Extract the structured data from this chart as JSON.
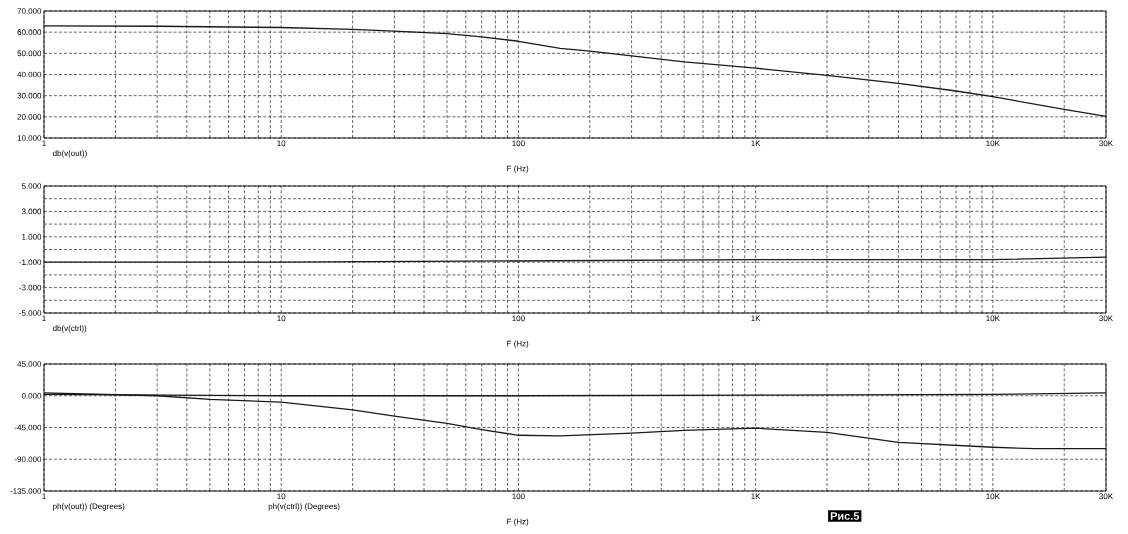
{
  "chart_data": [
    {
      "type": "line",
      "xlabel": "F (Hz)",
      "annotations": [
        "db(v(out))"
      ],
      "log": "x",
      "grid": true,
      "xlim": [
        1,
        30000
      ],
      "ylim": [
        10,
        70
      ],
      "xticks": [
        1,
        {
          "value": 2,
          "label": null
        },
        {
          "value": 3,
          "label": null
        },
        {
          "value": 4,
          "label": null
        },
        {
          "value": 5,
          "label": null
        },
        {
          "value": 6,
          "label": null
        },
        {
          "value": 7,
          "label": null
        },
        {
          "value": 8,
          "label": null
        },
        {
          "value": 9,
          "label": null
        },
        10,
        {
          "value": 20,
          "label": null
        },
        {
          "value": 30,
          "label": null
        },
        {
          "value": 40,
          "label": null
        },
        {
          "value": 50,
          "label": null
        },
        {
          "value": 60,
          "label": null
        },
        {
          "value": 70,
          "label": null
        },
        {
          "value": 80,
          "label": null
        },
        {
          "value": 90,
          "label": null
        },
        100,
        {
          "value": 200,
          "label": null
        },
        {
          "value": 300,
          "label": null
        },
        {
          "value": 400,
          "label": null
        },
        {
          "value": 500,
          "label": null
        },
        {
          "value": 600,
          "label": null
        },
        {
          "value": 700,
          "label": null
        },
        {
          "value": 800,
          "label": null
        },
        {
          "value": 900,
          "label": null
        },
        {
          "value": 1000,
          "label": "1K"
        },
        {
          "value": 2000,
          "label": null
        },
        {
          "value": 3000,
          "label": null
        },
        {
          "value": 4000,
          "label": null
        },
        {
          "value": 5000,
          "label": null
        },
        {
          "value": 6000,
          "label": null
        },
        {
          "value": 7000,
          "label": null
        },
        {
          "value": 8000,
          "label": null
        },
        {
          "value": 9000,
          "label": null
        },
        {
          "value": 10000,
          "label": "10K"
        },
        {
          "value": 20000,
          "label": null
        },
        {
          "value": 30000,
          "label": "30K"
        }
      ],
      "yticks": [
        {
          "value": 10,
          "label": "10.000"
        },
        {
          "value": 20,
          "label": "20.000"
        },
        {
          "value": 30,
          "label": "30.000"
        },
        {
          "value": 40,
          "label": "40.000"
        },
        {
          "value": 50,
          "label": "50.000"
        },
        {
          "value": 60,
          "label": "60.000"
        },
        {
          "value": 70,
          "label": "70.000"
        }
      ],
      "series": [
        {
          "color": "#1a1a1a",
          "x": [
            1,
            3,
            10,
            20,
            30,
            50,
            70,
            100,
            150,
            200,
            300,
            500,
            1000,
            2000,
            4000,
            7000,
            10000,
            20000,
            30000
          ],
          "values": [
            63,
            62.8,
            62.2,
            61.3,
            60.5,
            59.3,
            57.8,
            55.7,
            52.3,
            51,
            48.8,
            46,
            43,
            39.6,
            35.8,
            32.2,
            29.5,
            23.5,
            20.2
          ]
        }
      ]
    },
    {
      "type": "line",
      "xlabel": "F (Hz)",
      "annotations": [
        "db(v(ctrl))"
      ],
      "log": "x",
      "grid": true,
      "xlim": [
        1,
        30000
      ],
      "ylim": [
        -5,
        5
      ],
      "xticks": [
        1,
        {
          "value": 2,
          "label": null
        },
        {
          "value": 3,
          "label": null
        },
        {
          "value": 4,
          "label": null
        },
        {
          "value": 5,
          "label": null
        },
        {
          "value": 6,
          "label": null
        },
        {
          "value": 7,
          "label": null
        },
        {
          "value": 8,
          "label": null
        },
        {
          "value": 9,
          "label": null
        },
        10,
        {
          "value": 20,
          "label": null
        },
        {
          "value": 30,
          "label": null
        },
        {
          "value": 40,
          "label": null
        },
        {
          "value": 50,
          "label": null
        },
        {
          "value": 60,
          "label": null
        },
        {
          "value": 70,
          "label": null
        },
        {
          "value": 80,
          "label": null
        },
        {
          "value": 90,
          "label": null
        },
        100,
        {
          "value": 200,
          "label": null
        },
        {
          "value": 300,
          "label": null
        },
        {
          "value": 400,
          "label": null
        },
        {
          "value": 500,
          "label": null
        },
        {
          "value": 600,
          "label": null
        },
        {
          "value": 700,
          "label": null
        },
        {
          "value": 800,
          "label": null
        },
        {
          "value": 900,
          "label": null
        },
        {
          "value": 1000,
          "label": "1K"
        },
        {
          "value": 2000,
          "label": null
        },
        {
          "value": 3000,
          "label": null
        },
        {
          "value": 4000,
          "label": null
        },
        {
          "value": 5000,
          "label": null
        },
        {
          "value": 6000,
          "label": null
        },
        {
          "value": 7000,
          "label": null
        },
        {
          "value": 8000,
          "label": null
        },
        {
          "value": 9000,
          "label": null
        },
        {
          "value": 10000,
          "label": "10K"
        },
        {
          "value": 20000,
          "label": null
        },
        {
          "value": 30000,
          "label": "30K"
        }
      ],
      "yticks": [
        {
          "value": -5,
          "label": "-5.000"
        },
        {
          "value": -4,
          "label": null
        },
        {
          "value": -3,
          "label": "-3.000"
        },
        {
          "value": -2,
          "label": null
        },
        {
          "value": -1,
          "label": "-1.000"
        },
        {
          "value": 0,
          "label": null
        },
        {
          "value": 1,
          "label": "1.000"
        },
        {
          "value": 2,
          "label": null
        },
        {
          "value": 3,
          "label": "3.000"
        },
        {
          "value": 4,
          "label": null
        },
        {
          "value": 5,
          "label": "5.000"
        }
      ],
      "series": [
        {
          "color": "#1a1a1a",
          "x": [
            1,
            10,
            100,
            1000,
            10000,
            30000
          ],
          "values": [
            -1,
            -1,
            -0.9,
            -0.8,
            -0.8,
            -0.6
          ]
        }
      ]
    },
    {
      "type": "line",
      "xlabel": "F (Hz)",
      "log": "x",
      "grid": true,
      "annotations": [
        "ph(v(out)) (Degrees)",
        "ph(v(ctrl)) (Degrees)",
        "Рис.5"
      ],
      "xlim": [
        1,
        30000
      ],
      "ylim": [
        -135,
        45
      ],
      "xticks": [
        1,
        {
          "value": 2,
          "label": null
        },
        {
          "value": 3,
          "label": null
        },
        {
          "value": 4,
          "label": null
        },
        {
          "value": 5,
          "label": null
        },
        {
          "value": 6,
          "label": null
        },
        {
          "value": 7,
          "label": null
        },
        {
          "value": 8,
          "label": null
        },
        {
          "value": 9,
          "label": null
        },
        10,
        {
          "value": 20,
          "label": null
        },
        {
          "value": 30,
          "label": null
        },
        {
          "value": 40,
          "label": null
        },
        {
          "value": 50,
          "label": null
        },
        {
          "value": 60,
          "label": null
        },
        {
          "value": 70,
          "label": null
        },
        {
          "value": 80,
          "label": null
        },
        {
          "value": 90,
          "label": null
        },
        100,
        {
          "value": 200,
          "label": null
        },
        {
          "value": 300,
          "label": null
        },
        {
          "value": 400,
          "label": null
        },
        {
          "value": 500,
          "label": null
        },
        {
          "value": 600,
          "label": null
        },
        {
          "value": 700,
          "label": null
        },
        {
          "value": 800,
          "label": null
        },
        {
          "value": 900,
          "label": null
        },
        {
          "value": 1000,
          "label": "1K"
        },
        {
          "value": 2000,
          "label": null
        },
        {
          "value": 3000,
          "label": null
        },
        {
          "value": 4000,
          "label": null
        },
        {
          "value": 5000,
          "label": null
        },
        {
          "value": 6000,
          "label": null
        },
        {
          "value": 7000,
          "label": null
        },
        {
          "value": 8000,
          "label": null
        },
        {
          "value": 9000,
          "label": null
        },
        {
          "value": 10000,
          "label": "10K"
        },
        {
          "value": 20000,
          "label": null
        },
        {
          "value": 30000,
          "label": "30K"
        }
      ],
      "yticks": [
        {
          "value": -135,
          "label": "-135.000"
        },
        {
          "value": -90,
          "label": "-90.000"
        },
        {
          "value": -45,
          "label": "-45.000"
        },
        {
          "value": 0,
          "label": "0.000"
        },
        {
          "value": 45,
          "label": "45.000"
        }
      ],
      "series": [
        {
          "color": "#1a1a1a",
          "x": [
            1,
            3,
            5,
            10,
            20,
            30,
            50,
            70,
            100,
            150,
            300,
            500,
            1000,
            2000,
            4000,
            10000,
            15000,
            30000
          ],
          "values": [
            4,
            0,
            -5,
            -9,
            -20,
            -29,
            -39,
            -48,
            -56,
            -57,
            -53,
            -49,
            -46,
            -52,
            -66,
            -73,
            -75,
            -75
          ]
        },
        {
          "color": "#1a1a1a",
          "x": [
            1,
            10,
            100,
            1000,
            10000,
            30000
          ],
          "values": [
            2,
            0,
            0,
            1,
            2,
            4
          ]
        }
      ]
    }
  ]
}
